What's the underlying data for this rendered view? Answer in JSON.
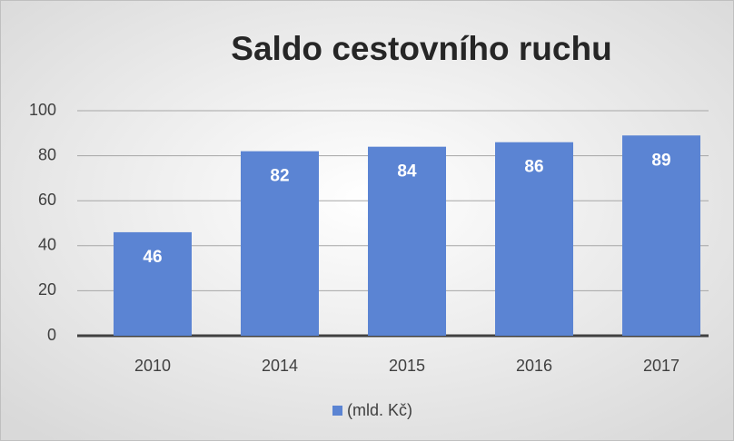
{
  "chart_data": {
    "type": "bar",
    "title": "Saldo cestovního ruchu",
    "categories": [
      "2010",
      "2014",
      "2015",
      "2016",
      "2017"
    ],
    "series": [
      {
        "name": "(mld. Kč)",
        "color": "#5b84d3",
        "values": [
          46,
          82,
          84,
          86,
          89
        ]
      }
    ],
    "ylim": [
      0,
      100
    ],
    "yticks": [
      0,
      20,
      40,
      60,
      80,
      100
    ],
    "grid": true,
    "legend": "bottom"
  }
}
